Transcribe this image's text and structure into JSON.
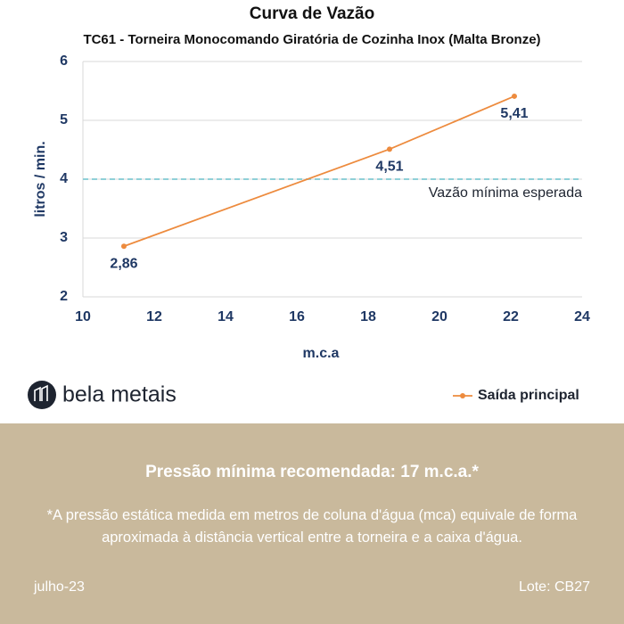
{
  "chart_data": {
    "type": "line",
    "title": "Curva de Vazão",
    "subtitle": "TC61 - Torneira Monocomando Giratória de Cozinha Inox (Malta Bronze)",
    "x_label": "m.c.a",
    "y_label": "litros / min.",
    "series": [
      {
        "name": "Saída principal",
        "color": "#ed8b3e",
        "x": [
          11.15,
          18.6,
          22.1
        ],
        "values": [
          2.86,
          4.51,
          5.41
        ],
        "value_labels": [
          "2,86",
          "4,51",
          "5,41"
        ]
      }
    ],
    "reference_line": {
      "value": 4,
      "label": "Vazão mínima esperada",
      "color": "#8fd0d8"
    },
    "xlim": [
      10,
      24
    ],
    "xticks": [
      10,
      12,
      14,
      16,
      18,
      20,
      22,
      24
    ],
    "ylim": [
      2,
      6
    ],
    "yticks": [
      2,
      3,
      4,
      5,
      6
    ],
    "grid": true,
    "legend": "bottom-right"
  },
  "brand": "bela metais",
  "footer": {
    "headline": "Pressão mínima recomendada: 17 m.c.a.*",
    "note": "*A pressão estática medida em metros de coluna d'água (mca) equivale de forma aproximada à distância vertical entre a torneira e a caixa d'água.",
    "date": "julho-23",
    "lot": "Lote: CB27"
  }
}
